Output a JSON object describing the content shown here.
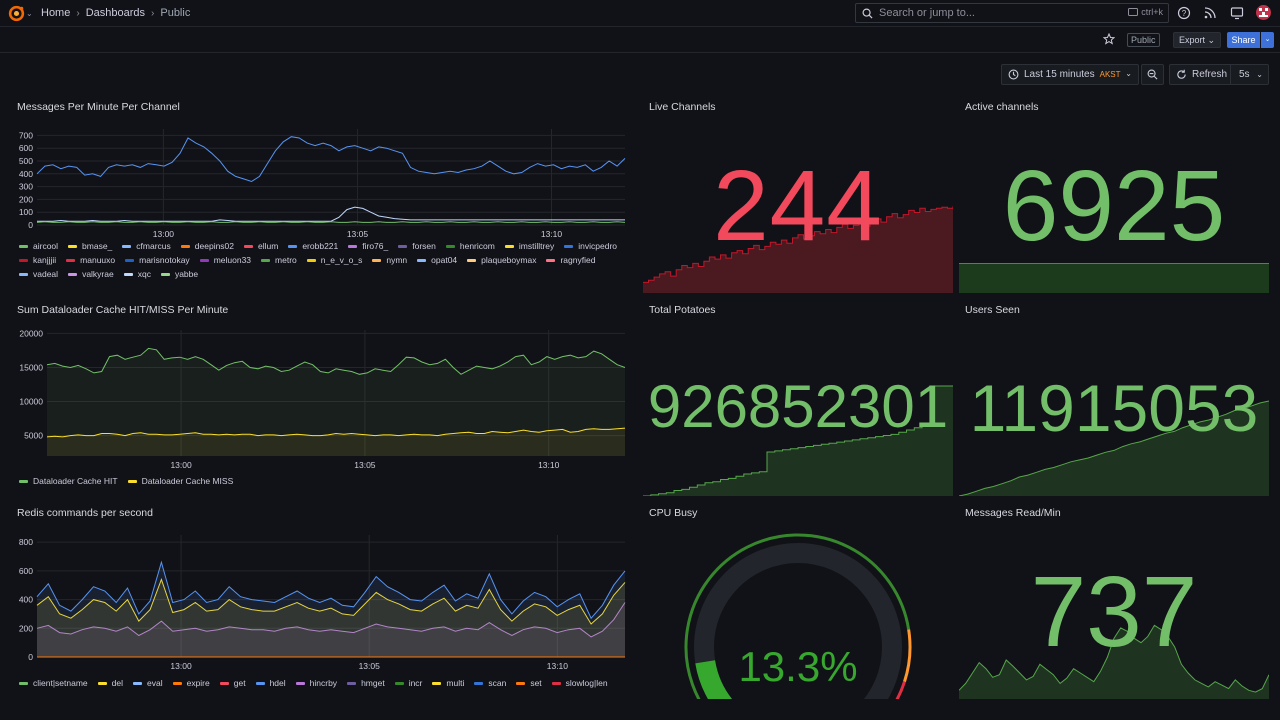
{
  "header": {
    "breadcrumbs": [
      "Home",
      "Dashboards",
      "Public"
    ],
    "search_placeholder": "Search or jump to...",
    "search_shortcut": "ctrl+k",
    "public_tag": "Public",
    "export_label": "Export",
    "share_label": "Share"
  },
  "toolbar": {
    "time_range": "Last 15 minutes",
    "timezone": "AKST",
    "refresh_label": "Refresh",
    "refresh_interval": "5s"
  },
  "colors": {
    "green": "#73bf69",
    "red": "#f2495c",
    "yellow": "#fade2a",
    "blue": "#5794f2",
    "gauge_green": "#37872d",
    "gauge_orange": "#ff9830",
    "gauge_red": "#e02f44"
  },
  "panels": {
    "messages_per_minute": {
      "title": "Messages Per Minute Per Channel",
      "legend": [
        {
          "name": "aircool",
          "color": "#73bf69"
        },
        {
          "name": "bmase_",
          "color": "#fade2a"
        },
        {
          "name": "cfmarcus",
          "color": "#8ab8ff"
        },
        {
          "name": "deepins02",
          "color": "#ff780a"
        },
        {
          "name": "ellum",
          "color": "#f2495c"
        },
        {
          "name": "erobb221",
          "color": "#5794f2"
        },
        {
          "name": "firo76_",
          "color": "#b877d9"
        },
        {
          "name": "forsen",
          "color": "#705da0"
        },
        {
          "name": "henricom",
          "color": "#37872d"
        },
        {
          "name": "imstilltrey",
          "color": "#fade2a"
        },
        {
          "name": "invicpedro",
          "color": "#3274d9"
        },
        {
          "name": "kanjjjii",
          "color": "#c4162a"
        },
        {
          "name": "manuuxo",
          "color": "#e02f44"
        },
        {
          "name": "marisnotokay",
          "color": "#1f60c4"
        },
        {
          "name": "meluon33",
          "color": "#8f3bb8"
        },
        {
          "name": "metro",
          "color": "#56a64b"
        },
        {
          "name": "n_e_v_o_s",
          "color": "#f2cc0c"
        },
        {
          "name": "nymn",
          "color": "#ffb357"
        },
        {
          "name": "opat04",
          "color": "#8ab8ff"
        },
        {
          "name": "plaqueboymax",
          "color": "#ffcb7d"
        },
        {
          "name": "ragnyfied",
          "color": "#ff7383"
        },
        {
          "name": "vadeal",
          "color": "#8ab8ff"
        },
        {
          "name": "valkyrae",
          "color": "#ca95e5"
        },
        {
          "name": "xqc",
          "color": "#c0d8ff"
        },
        {
          "name": "yabbe",
          "color": "#96d98d"
        }
      ]
    },
    "dataloader": {
      "title": "Sum Dataloader Cache HIT/MISS Per Minute",
      "legend": [
        {
          "name": "Dataloader Cache HIT",
          "color": "#73bf69"
        },
        {
          "name": "Dataloader Cache MISS",
          "color": "#fade2a"
        }
      ]
    },
    "redis": {
      "title": "Redis commands per second",
      "legend": [
        {
          "name": "client|setname",
          "color": "#73bf69"
        },
        {
          "name": "del",
          "color": "#fade2a"
        },
        {
          "name": "eval",
          "color": "#8ab8ff"
        },
        {
          "name": "expire",
          "color": "#ff780a"
        },
        {
          "name": "get",
          "color": "#f2495c"
        },
        {
          "name": "hdel",
          "color": "#5794f2"
        },
        {
          "name": "hincrby",
          "color": "#b877d9"
        },
        {
          "name": "hmget",
          "color": "#705da0"
        },
        {
          "name": "incr",
          "color": "#37872d"
        },
        {
          "name": "multi",
          "color": "#fade2a"
        },
        {
          "name": "scan",
          "color": "#3274d9"
        },
        {
          "name": "set",
          "color": "#ff780a"
        },
        {
          "name": "slowlog|len",
          "color": "#e02f44"
        }
      ]
    },
    "live_channels": {
      "title": "Live Channels",
      "value": "244"
    },
    "active_channels": {
      "title": "Active channels",
      "value": "6925"
    },
    "total_potatoes": {
      "title": "Total Potatoes",
      "value": "926852301"
    },
    "users_seen": {
      "title": "Users Seen",
      "value": "11915053"
    },
    "cpu_busy": {
      "title": "CPU Busy",
      "value": "13.3%",
      "value_num": 13.3
    },
    "messages_read": {
      "title": "Messages Read/Min",
      "value": "737"
    }
  },
  "chart_data": [
    {
      "type": "line",
      "title": "Messages Per Minute Per Channel",
      "x_ticks": [
        "13:00",
        "13:05",
        "13:10"
      ],
      "y_ticks": [
        0,
        100,
        200,
        300,
        400,
        500,
        600,
        700
      ],
      "ylim": [
        0,
        750
      ],
      "series": [
        {
          "name": "invicpedro",
          "color": "#5794f2",
          "values": [
            400,
            460,
            470,
            440,
            460,
            450,
            390,
            400,
            380,
            450,
            470,
            460,
            470,
            450,
            480,
            470,
            460,
            490,
            560,
            680,
            640,
            610,
            560,
            500,
            420,
            380,
            360,
            340,
            380,
            480,
            580,
            650,
            690,
            680,
            640,
            620,
            640,
            620,
            580,
            610,
            620,
            600,
            580,
            610,
            600,
            580,
            560,
            450,
            420,
            410,
            400,
            410,
            420,
            410,
            430,
            440,
            460,
            500,
            460,
            420,
            400,
            410,
            450,
            480,
            460,
            470,
            440,
            460,
            450,
            470,
            420,
            450,
            500,
            460,
            520
          ]
        },
        {
          "name": "xqc",
          "color": "#c0d8ff",
          "values": [
            30,
            30,
            30,
            35,
            30,
            30,
            30,
            35,
            30,
            30,
            30,
            35,
            30,
            30,
            30,
            30,
            30,
            30,
            30,
            30,
            30,
            30,
            30,
            40,
            35,
            30,
            30,
            30,
            30,
            30,
            30,
            30,
            30,
            30,
            30,
            30,
            30,
            30,
            60,
            120,
            140,
            130,
            100,
            70,
            60,
            50,
            45,
            40,
            40,
            40,
            40,
            40,
            40,
            40,
            40,
            40,
            40,
            40,
            40,
            40,
            40,
            40,
            40,
            40,
            40,
            40,
            40,
            40,
            40,
            40,
            40,
            40,
            40,
            40,
            40
          ]
        },
        {
          "name": "aircool",
          "color": "#73bf69",
          "values": [
            20,
            25,
            20,
            20,
            25,
            20,
            20,
            25,
            20,
            20,
            25,
            20,
            20,
            25,
            20,
            20,
            25,
            20,
            20,
            25,
            20,
            20,
            25,
            20,
            20,
            25,
            20,
            20,
            25,
            20,
            20,
            25,
            20,
            20,
            25,
            20,
            20,
            25,
            20,
            20,
            25,
            20,
            20,
            25,
            20,
            20,
            25,
            20,
            20,
            25,
            20,
            20,
            25,
            20,
            20,
            25,
            20,
            20,
            25,
            20,
            20,
            25,
            20,
            20,
            25,
            20,
            20,
            25,
            20,
            20,
            25,
            20,
            20,
            25,
            20
          ]
        }
      ]
    },
    {
      "type": "area",
      "title": "Sum Dataloader Cache HIT/MISS Per Minute",
      "x_ticks": [
        "13:00",
        "13:05",
        "13:10"
      ],
      "y_ticks": [
        5000,
        10000,
        15000,
        20000
      ],
      "ylim": [
        2000,
        20500
      ],
      "series": [
        {
          "name": "Dataloader Cache HIT",
          "color": "#73bf69",
          "values": [
            15400,
            15600,
            15200,
            15000,
            15300,
            14800,
            14200,
            14400,
            16600,
            16800,
            16200,
            16500,
            16800,
            17800,
            17600,
            16200,
            16400,
            16500,
            16200,
            16600,
            16200,
            15400,
            14600,
            15300,
            15700,
            15900,
            15000,
            14800,
            15200,
            15000,
            14400,
            14600,
            15200,
            15800,
            15400,
            14400,
            14200,
            14800,
            14600,
            14400,
            14000,
            14200,
            14800,
            14600,
            14400,
            15400,
            16500,
            16400,
            15800,
            15400,
            15600,
            16200,
            15000,
            14000,
            14600,
            15200,
            15000,
            14800,
            15200,
            15800,
            16600,
            16800,
            15400,
            15800,
            16600,
            16200,
            16600,
            16800,
            16400,
            16600,
            17400,
            17000,
            16200,
            15400,
            15000
          ]
        },
        {
          "name": "Dataloader Cache MISS",
          "color": "#fade2a",
          "values": [
            4800,
            4900,
            4800,
            5000,
            5100,
            5000,
            5000,
            5300,
            5300,
            5200,
            5000,
            5300,
            5400,
            5200,
            5200,
            5100,
            5100,
            5200,
            5300,
            5400,
            5200,
            5200,
            5100,
            5200,
            5100,
            5200,
            5200,
            5000,
            5100,
            5100,
            5000,
            5100,
            5200,
            5100,
            5000,
            5000,
            5100,
            5300,
            5200,
            5300,
            5200,
            5100,
            5000,
            5100,
            5100,
            5000,
            5100,
            5200,
            5100,
            5100,
            5000,
            5200,
            5300,
            5400,
            5500,
            5300,
            5300,
            5600,
            5500,
            5400,
            5600,
            5800,
            5600,
            5500,
            5700,
            5800,
            5900,
            5500,
            5600,
            5900,
            6000,
            5900,
            5900,
            6000,
            6100
          ]
        }
      ]
    },
    {
      "type": "area",
      "title": "Redis commands per second",
      "x_ticks": [
        "13:00",
        "13:05",
        "13:10"
      ],
      "y_ticks": [
        0,
        200,
        400,
        600,
        800
      ],
      "ylim": [
        0,
        850
      ],
      "series": [
        {
          "name": "hincrby",
          "color": "#b877d9",
          "values": [
            200,
            220,
            170,
            160,
            190,
            210,
            200,
            180,
            210,
            150,
            190,
            250,
            180,
            190,
            200,
            180,
            190,
            210,
            200,
            190,
            190,
            180,
            200,
            210,
            190,
            180,
            190,
            180,
            170,
            200,
            230,
            210,
            200,
            190,
            180,
            200,
            210,
            180,
            200,
            190,
            240,
            190,
            150,
            190,
            210,
            200,
            170,
            190,
            200,
            140,
            180,
            260,
            380
          ]
        },
        {
          "name": "hmget",
          "color": "#fade2a",
          "values": [
            360,
            420,
            300,
            270,
            330,
            400,
            380,
            320,
            400,
            250,
            330,
            540,
            310,
            330,
            380,
            320,
            330,
            400,
            350,
            330,
            320,
            320,
            350,
            380,
            340,
            320,
            340,
            300,
            290,
            370,
            450,
            400,
            370,
            330,
            320,
            370,
            410,
            320,
            360,
            340,
            470,
            330,
            250,
            320,
            370,
            350,
            290,
            330,
            360,
            230,
            300,
            430,
            520
          ]
        },
        {
          "name": "get",
          "color": "#5794f2",
          "values": [
            420,
            510,
            360,
            320,
            400,
            490,
            460,
            380,
            480,
            300,
            390,
            660,
            380,
            400,
            460,
            380,
            400,
            490,
            420,
            400,
            390,
            380,
            420,
            460,
            410,
            380,
            410,
            360,
            350,
            450,
            560,
            490,
            450,
            400,
            390,
            450,
            500,
            390,
            440,
            410,
            580,
            400,
            300,
            390,
            450,
            420,
            350,
            400,
            440,
            270,
            360,
            500,
            600
          ]
        }
      ]
    },
    {
      "type": "area",
      "title": "Live Channels",
      "values": [
        10,
        12,
        15,
        18,
        20,
        16,
        22,
        26,
        24,
        28,
        25,
        30,
        34,
        32,
        36,
        33,
        38,
        40,
        37,
        42,
        45,
        41,
        44,
        48,
        46,
        50,
        47,
        52,
        55,
        51,
        54,
        58,
        56,
        60,
        57,
        62,
        65,
        61,
        64,
        66,
        63,
        68,
        70,
        67,
        72,
        75,
        71,
        74,
        78,
        76,
        80,
        77,
        79,
        80,
        81,
        80,
        82
      ]
    },
    {
      "type": "area",
      "title": "Total Potatoes",
      "values": [
        0,
        1,
        2,
        3,
        5,
        6,
        8,
        10,
        12,
        13,
        15,
        16,
        18,
        20,
        21,
        22,
        40,
        41,
        42,
        43,
        44,
        45,
        46,
        47,
        48,
        49,
        50,
        51,
        52,
        53,
        54,
        55,
        56,
        58,
        60,
        62,
        64,
        100,
        100,
        100,
        100
      ]
    },
    {
      "type": "area",
      "title": "Users Seen",
      "values": [
        0,
        2,
        5,
        8,
        10,
        13,
        16,
        20,
        22,
        25,
        28,
        30,
        33,
        36,
        38,
        40,
        43,
        46,
        48,
        52,
        55,
        57,
        60,
        63,
        66,
        68,
        72,
        75,
        78,
        80,
        83,
        86,
        90,
        92,
        95,
        98,
        100
      ]
    },
    {
      "type": "area",
      "title": "Messages Read/Min",
      "values": [
        10,
        18,
        30,
        42,
        35,
        25,
        28,
        45,
        38,
        30,
        22,
        26,
        40,
        34,
        28,
        18,
        24,
        35,
        30,
        25,
        20,
        32,
        48,
        70,
        82,
        78,
        70,
        65,
        72,
        85,
        80,
        72,
        60,
        40,
        30,
        22,
        18,
        14,
        20,
        16,
        12,
        22,
        15,
        10,
        8,
        12,
        28
      ]
    }
  ]
}
